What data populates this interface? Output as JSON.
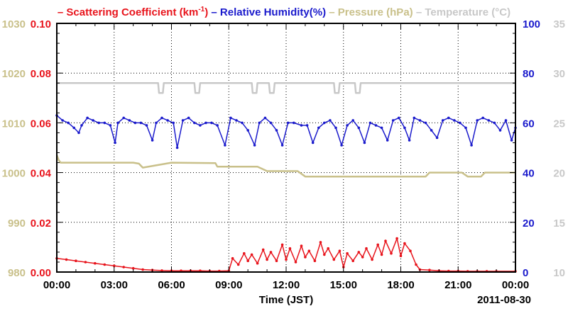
{
  "chart_data": {
    "type": "line",
    "legend": [
      {
        "text": "– Scattering Coefficient (km",
        "sup": "-1",
        "close": ")",
        "color": "#e8141c"
      },
      {
        "text": "– Relative Humidity(%)",
        "color": "#1a1acc"
      },
      {
        "text": "– Pressure (hPa)",
        "color": "#c9c08a"
      },
      {
        "text": "– Temperature (°C)",
        "color": "#c8c8c8"
      }
    ],
    "xlabel": "Time (JST)",
    "date_label": "2011-08-30",
    "x_ticks": [
      "00:00",
      "03:00",
      "06:00",
      "09:00",
      "12:00",
      "15:00",
      "18:00",
      "21:00",
      "00:00"
    ],
    "xlim_hours": [
      0,
      24
    ],
    "axes": {
      "pressure": {
        "ylim": [
          980,
          1030
        ],
        "ticks": [
          "980",
          "990",
          "1000",
          "1010",
          "1020",
          "1030"
        ],
        "color": "#c9c08a"
      },
      "scattering": {
        "ylim": [
          0,
          0.1
        ],
        "ticks": [
          "0.00",
          "0.02",
          "0.04",
          "0.06",
          "0.08",
          "0.10"
        ],
        "color": "#e8141c"
      },
      "humidity": {
        "ylim": [
          0,
          100
        ],
        "ticks": [
          "0",
          "20",
          "40",
          "60",
          "80",
          "100"
        ],
        "color": "#1a1acc"
      },
      "temperature": {
        "ylim": [
          10,
          35
        ],
        "ticks": [
          "10",
          "15",
          "20",
          "25",
          "30",
          "35"
        ],
        "color": "#c8c8c8"
      }
    },
    "grid": true,
    "series": [
      {
        "name": "Scattering Coefficient",
        "axis": "scattering",
        "color": "#e8141c",
        "x": [
          0,
          0.5,
          1,
          1.5,
          2,
          2.5,
          3,
          3.5,
          4,
          4.5,
          5,
          5.5,
          6,
          6.5,
          7,
          7.5,
          8,
          8.5,
          9,
          9.2,
          9.5,
          9.8,
          10,
          10.2,
          10.5,
          10.8,
          11,
          11.2,
          11.5,
          11.8,
          12,
          12.2,
          12.5,
          12.8,
          13,
          13.2,
          13.5,
          13.8,
          14,
          14.2,
          14.5,
          14.8,
          15,
          15.2,
          15.5,
          15.8,
          16,
          16.2,
          16.5,
          16.8,
          17,
          17.2,
          17.5,
          17.8,
          18,
          18.2,
          18.5,
          18.8,
          19,
          19.5,
          20,
          20.5,
          21,
          21.5,
          22,
          22.5,
          23,
          24
        ],
        "values": [
          0.0055,
          0.005,
          0.0045,
          0.004,
          0.0035,
          0.003,
          0.0025,
          0.002,
          0.0015,
          0.001,
          0.0008,
          0.0006,
          0.0005,
          0.0005,
          0.0005,
          0.0005,
          0.0004,
          0.0004,
          0.0005,
          0.0055,
          0.003,
          0.0075,
          0.0045,
          0.007,
          0.0035,
          0.009,
          0.005,
          0.008,
          0.0045,
          0.011,
          0.005,
          0.0095,
          0.004,
          0.0105,
          0.006,
          0.0085,
          0.0045,
          0.012,
          0.007,
          0.0095,
          0.005,
          0.0085,
          0.002,
          0.0075,
          0.0045,
          0.008,
          0.006,
          0.0095,
          0.005,
          0.011,
          0.007,
          0.0125,
          0.0075,
          0.0135,
          0.0065,
          0.0115,
          0.0085,
          0.003,
          0.001,
          0.0008,
          0.0005,
          0.0004,
          0.0004,
          0.0003,
          0.0003,
          0.0003,
          0.0003,
          0.0003
        ]
      },
      {
        "name": "Relative Humidity",
        "axis": "humidity",
        "color": "#1a1acc",
        "x": [
          0,
          0.3,
          0.6,
          0.9,
          1.15,
          1.3,
          1.6,
          1.9,
          2.2,
          2.5,
          2.8,
          3.05,
          3.2,
          3.5,
          3.8,
          4.1,
          4.4,
          4.7,
          5.0,
          5.2,
          5.5,
          5.8,
          6.1,
          6.3,
          6.6,
          6.9,
          7.2,
          7.5,
          7.8,
          8.1,
          8.4,
          8.8,
          9.1,
          9.4,
          9.7,
          10.0,
          10.35,
          10.6,
          10.9,
          11.2,
          11.5,
          11.8,
          12.1,
          12.4,
          12.8,
          13.1,
          13.4,
          13.7,
          14.0,
          14.3,
          14.6,
          14.9,
          15.2,
          15.5,
          15.8,
          16.1,
          16.4,
          16.7,
          17.0,
          17.3,
          17.6,
          17.9,
          18.2,
          18.45,
          18.7,
          19.0,
          19.3,
          19.6,
          19.9,
          20.2,
          20.5,
          20.8,
          21.1,
          21.4,
          21.7,
          22.0,
          22.3,
          22.6,
          22.9,
          23.2,
          23.5,
          23.8,
          24
        ],
        "values": [
          63,
          61,
          60,
          58,
          56,
          59,
          62,
          61,
          60,
          60,
          59,
          52,
          60,
          62,
          61,
          60,
          60,
          59,
          53,
          60,
          62,
          61,
          60,
          50,
          61,
          62,
          60,
          59,
          60,
          60,
          59,
          51,
          62,
          61,
          60,
          57,
          51,
          60,
          62,
          60,
          57,
          51,
          60,
          60,
          59,
          59,
          52,
          58,
          60,
          61,
          58,
          51,
          59,
          61,
          58,
          52,
          60,
          59,
          58,
          53,
          61,
          62,
          58,
          53,
          62,
          61,
          60,
          57,
          54,
          61,
          62,
          61,
          60,
          58,
          51,
          61,
          62,
          61,
          60,
          57,
          61,
          53,
          58
        ]
      },
      {
        "name": "Pressure",
        "axis": "pressure",
        "color": "#c9c08a",
        "x": [
          0,
          0.1,
          0.2,
          2,
          4,
          4.3,
          4.5,
          6,
          8.3,
          8.4,
          9,
          10.5,
          11,
          12.6,
          13,
          14,
          16,
          18,
          19.3,
          19.5,
          21.2,
          21.5,
          22.2,
          22.4,
          23.2,
          23.5,
          24
        ],
        "values": [
          1003.5,
          1002.5,
          1002,
          1002,
          1002,
          1001.8,
          1001,
          1002,
          1001.9,
          1001.2,
          1001.2,
          1001.2,
          1000.3,
          1000.3,
          999.2,
          999.2,
          999.2,
          999.2,
          999.2,
          1000,
          1000,
          999.2,
          999.2,
          1000,
          1000,
          1000,
          1000
        ]
      },
      {
        "name": "Temperature",
        "axis": "temperature",
        "color": "#c8c8c8",
        "x": [
          0,
          5.3,
          5.35,
          5.55,
          5.6,
          7.2,
          7.25,
          7.45,
          7.5,
          10.2,
          10.25,
          10.45,
          10.5,
          11.1,
          11.15,
          11.35,
          11.4,
          14.5,
          14.55,
          14.75,
          14.8,
          15.6,
          15.65,
          15.85,
          15.9,
          24
        ],
        "values": [
          29,
          29,
          28,
          28,
          29,
          29,
          28,
          28,
          29,
          29,
          28,
          28,
          29,
          29,
          28,
          28,
          29,
          29,
          28,
          28,
          29,
          29,
          28,
          28,
          29,
          29
        ]
      }
    ]
  }
}
